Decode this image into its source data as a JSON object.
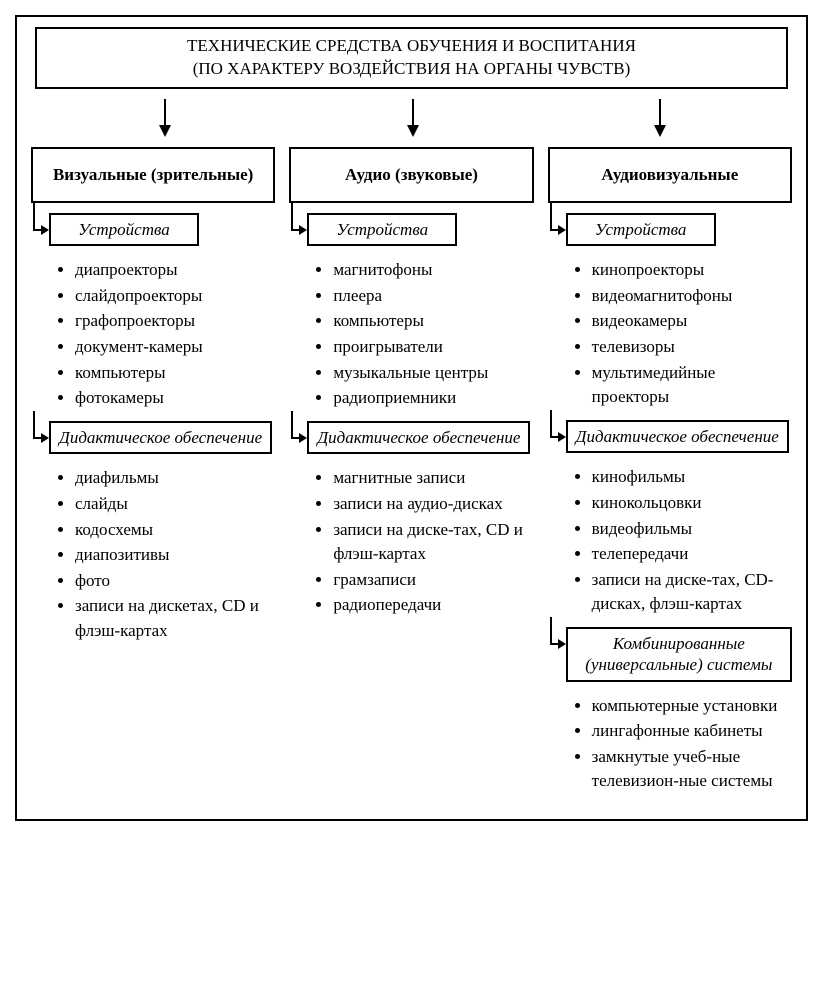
{
  "diagram": {
    "type": "tree",
    "background_color": "#ffffff",
    "border_color": "#000000",
    "text_color": "#000000",
    "font_family": "serif",
    "title_fontsize": 17,
    "category_fontsize": 17,
    "subhead_fontsize": 17,
    "item_fontsize": 17,
    "title_lines": [
      "ТЕХНИЧЕСКИЕ СРЕДСТВА ОБУЧЕНИЯ И ВОСПИТАНИЯ",
      "(ПО ХАРАКТЕРУ ВОЗДЕЙСТВИЯ НА ОРГАНЫ ЧУВСТВ)"
    ],
    "columns": [
      {
        "heading": "Визуальные (зрительные)",
        "sections": [
          {
            "title": "Устройства",
            "items": [
              "диапроекторы",
              "слайдопроекторы",
              "графопроекторы",
              "документ-камеры",
              "компьютеры",
              "фотокамеры"
            ]
          },
          {
            "title": "Дидактическое обеспечение",
            "items": [
              "диафильмы",
              "слайды",
              "кодосхемы",
              "диапозитивы",
              "фото",
              "записи на дискетах, CD и флэш-картах"
            ]
          }
        ]
      },
      {
        "heading": "Аудио (звуковые)",
        "sections": [
          {
            "title": "Устройства",
            "items": [
              "магнитофоны",
              "плеера",
              "компьютеры",
              "проигрыватели",
              "музыкальные центры",
              "радиоприемники"
            ]
          },
          {
            "title": "Дидактическое обеспечение",
            "items": [
              "магнитные записи",
              "записи на аудио-дисках",
              "записи на диске-тах, CD и флэш-картах",
              "грамзаписи",
              "радиопередачи"
            ]
          }
        ]
      },
      {
        "heading": "Аудиовизуальные",
        "sections": [
          {
            "title": "Устройства",
            "items": [
              "кинопроекторы",
              "видеомагнитофоны",
              "видеокамеры",
              "телевизоры",
              "мультимедийные проекторы"
            ]
          },
          {
            "title": "Дидактическое обеспечение",
            "items": [
              "кинофильмы",
              "кинокольцовки",
              "видеофильмы",
              "телепередачи",
              "записи на диске-тах, CD-дисках, флэш-картах"
            ]
          },
          {
            "title": "Комбинированные (универсальные) системы",
            "items": [
              "компьютерные установки",
              "лингафонные кабинеты",
              "замкнутые учеб-ные телевизион-ные системы"
            ]
          }
        ]
      }
    ],
    "arrow_positions_pct": [
      18,
      50,
      82
    ]
  }
}
